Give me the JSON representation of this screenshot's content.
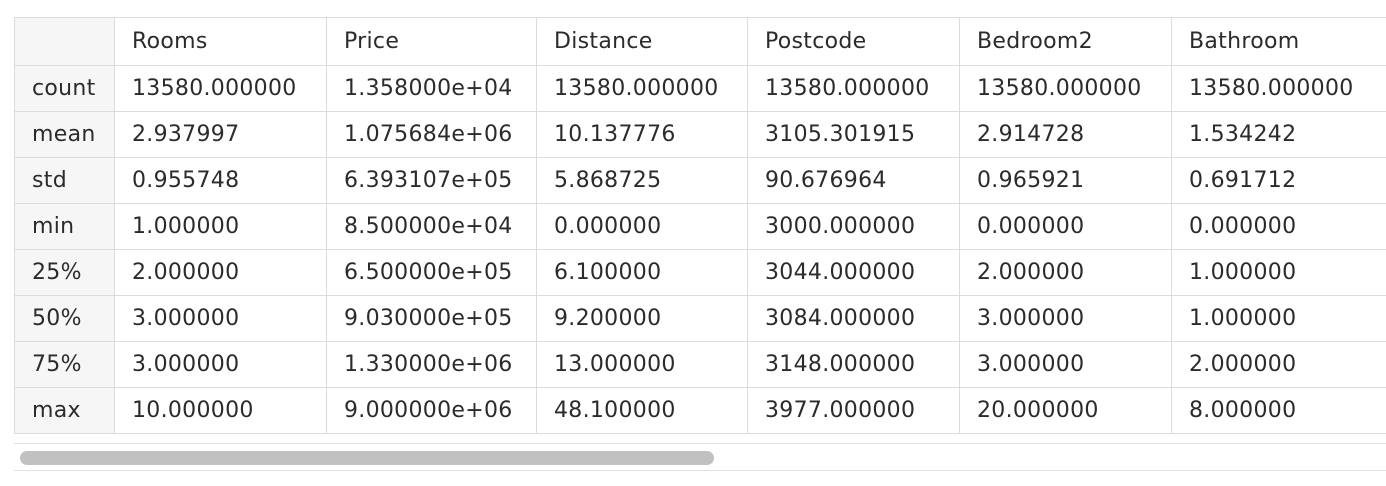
{
  "table": {
    "corner": "",
    "columns": [
      "Rooms",
      "Price",
      "Distance",
      "Postcode",
      "Bedroom2",
      "Bathroom"
    ],
    "rows": [
      {
        "index": "count",
        "values": [
          "13580.000000",
          "1.358000e+04",
          "13580.000000",
          "13580.000000",
          "13580.000000",
          "13580.000000"
        ]
      },
      {
        "index": "mean",
        "values": [
          "2.937997",
          "1.075684e+06",
          "10.137776",
          "3105.301915",
          "2.914728",
          "1.534242"
        ]
      },
      {
        "index": "std",
        "values": [
          "0.955748",
          "6.393107e+05",
          "5.868725",
          "90.676964",
          "0.965921",
          "0.691712"
        ]
      },
      {
        "index": "min",
        "values": [
          "1.000000",
          "8.500000e+04",
          "0.000000",
          "3000.000000",
          "0.000000",
          "0.000000"
        ]
      },
      {
        "index": "25%",
        "values": [
          "2.000000",
          "6.500000e+05",
          "6.100000",
          "3044.000000",
          "2.000000",
          "1.000000"
        ]
      },
      {
        "index": "50%",
        "values": [
          "3.000000",
          "9.030000e+05",
          "9.200000",
          "3084.000000",
          "3.000000",
          "1.000000"
        ]
      },
      {
        "index": "75%",
        "values": [
          "3.000000",
          "1.330000e+06",
          "13.000000",
          "3148.000000",
          "3.000000",
          "2.000000"
        ]
      },
      {
        "index": "max",
        "values": [
          "10.000000",
          "9.000000e+06",
          "48.100000",
          "3977.000000",
          "20.000000",
          "8.000000"
        ]
      }
    ]
  },
  "scrollbar": {
    "orientation": "horizontal",
    "thumb_position_fraction": 0.0,
    "thumb_size_fraction": 0.51
  }
}
